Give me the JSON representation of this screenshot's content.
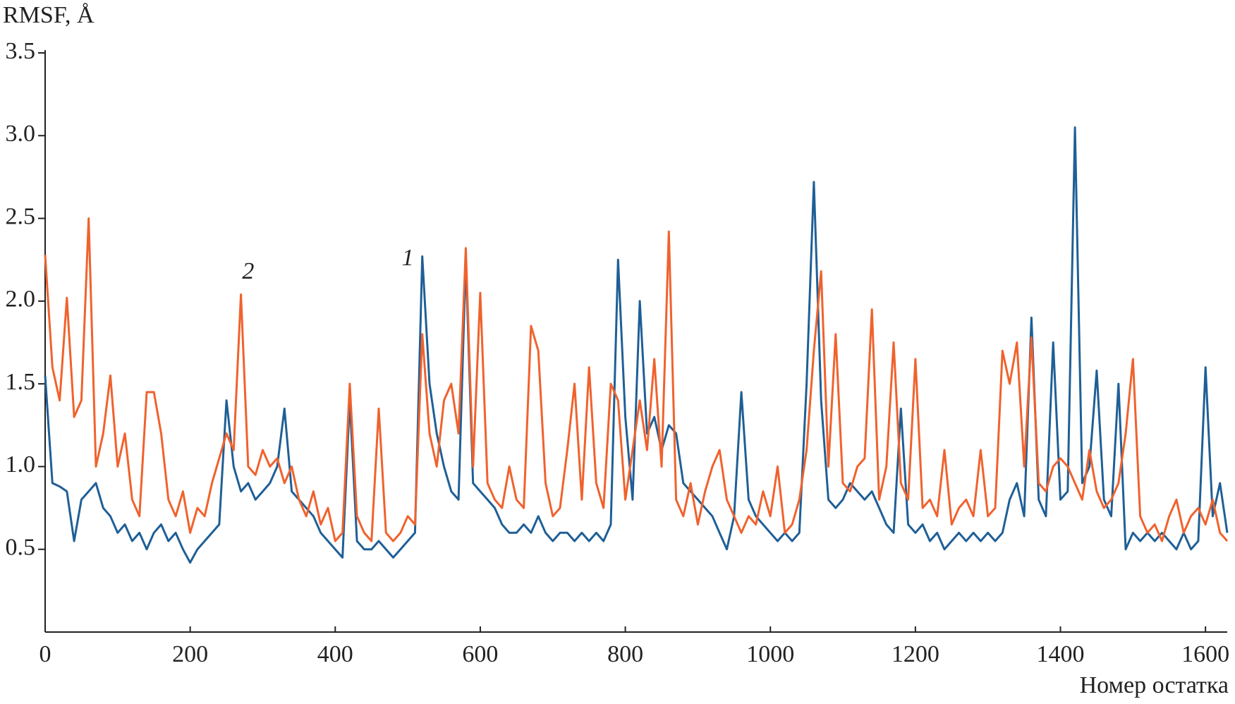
{
  "chart_data": {
    "type": "line",
    "y_label": "RMSF, Å",
    "x_label": "Номер остатка",
    "xlim": [
      0,
      1630
    ],
    "xticks": [
      0,
      200,
      400,
      600,
      800,
      1000,
      1200,
      1400,
      1600
    ],
    "ylim": [
      0,
      3.5
    ],
    "yticks": [
      {
        "value": 0.5,
        "label": "0.5"
      },
      {
        "value": 1,
        "label": "1.0"
      },
      {
        "value": 1.5,
        "label": "1.5"
      },
      {
        "value": 2,
        "label": "2.0"
      },
      {
        "value": 2.5,
        "label": "2.5"
      },
      {
        "value": 3,
        "label": "3.0"
      },
      {
        "value": 3.5,
        "label": "3.5"
      }
    ],
    "grid": false,
    "x": [
      0,
      10,
      20,
      30,
      40,
      50,
      60,
      70,
      80,
      90,
      100,
      110,
      120,
      130,
      140,
      150,
      160,
      170,
      180,
      190,
      200,
      210,
      220,
      230,
      240,
      250,
      260,
      270,
      280,
      290,
      300,
      310,
      320,
      330,
      340,
      350,
      360,
      370,
      380,
      390,
      400,
      410,
      420,
      430,
      440,
      450,
      460,
      470,
      480,
      490,
      500,
      510,
      520,
      530,
      540,
      550,
      560,
      570,
      580,
      590,
      600,
      610,
      620,
      630,
      640,
      650,
      660,
      670,
      680,
      690,
      700,
      710,
      720,
      730,
      740,
      750,
      760,
      770,
      780,
      790,
      800,
      810,
      820,
      830,
      840,
      850,
      860,
      870,
      880,
      890,
      900,
      910,
      920,
      930,
      940,
      950,
      960,
      970,
      980,
      990,
      1000,
      1010,
      1020,
      1030,
      1040,
      1050,
      1060,
      1070,
      1080,
      1090,
      1100,
      1110,
      1120,
      1130,
      1140,
      1150,
      1160,
      1170,
      1180,
      1190,
      1200,
      1210,
      1220,
      1230,
      1240,
      1250,
      1260,
      1270,
      1280,
      1290,
      1300,
      1310,
      1320,
      1330,
      1340,
      1350,
      1360,
      1370,
      1380,
      1390,
      1400,
      1410,
      1420,
      1430,
      1440,
      1450,
      1460,
      1470,
      1480,
      1490,
      1500,
      1510,
      1520,
      1530,
      1540,
      1550,
      1560,
      1570,
      1580,
      1590,
      1600,
      1610,
      1620,
      1630
    ],
    "series": [
      {
        "color": "#1f5f96",
        "values": [
          1.55,
          0.9,
          0.88,
          0.85,
          0.55,
          0.8,
          0.85,
          0.9,
          0.75,
          0.7,
          0.6,
          0.65,
          0.55,
          0.6,
          0.5,
          0.6,
          0.65,
          0.55,
          0.6,
          0.5,
          0.42,
          0.5,
          0.55,
          0.6,
          0.65,
          1.4,
          1.0,
          0.85,
          0.9,
          0.8,
          0.85,
          0.9,
          1.0,
          1.35,
          0.85,
          0.8,
          0.75,
          0.7,
          0.6,
          0.55,
          0.5,
          0.45,
          1.4,
          0.55,
          0.5,
          0.5,
          0.55,
          0.5,
          0.45,
          0.5,
          0.55,
          0.6,
          2.27,
          1.5,
          1.2,
          1.0,
          0.85,
          0.8,
          2.25,
          0.9,
          0.85,
          0.8,
          0.75,
          0.65,
          0.6,
          0.6,
          0.65,
          0.6,
          0.7,
          0.6,
          0.55,
          0.6,
          0.6,
          0.55,
          0.6,
          0.55,
          0.6,
          0.55,
          0.65,
          2.25,
          1.3,
          0.8,
          2.0,
          1.2,
          1.3,
          1.1,
          1.25,
          1.2,
          0.9,
          0.85,
          0.8,
          0.75,
          0.7,
          0.6,
          0.5,
          0.7,
          1.45,
          0.8,
          0.7,
          0.65,
          0.6,
          0.55,
          0.6,
          0.55,
          0.6,
          1.5,
          2.72,
          1.4,
          0.8,
          0.75,
          0.8,
          0.9,
          0.85,
          0.8,
          0.85,
          0.75,
          0.65,
          0.6,
          1.35,
          0.65,
          0.6,
          0.65,
          0.55,
          0.6,
          0.5,
          0.55,
          0.6,
          0.55,
          0.6,
          0.55,
          0.6,
          0.55,
          0.6,
          0.8,
          0.9,
          0.7,
          1.9,
          0.8,
          0.7,
          1.75,
          0.8,
          0.85,
          3.05,
          0.9,
          1.0,
          1.58,
          0.8,
          0.7,
          1.5,
          0.5,
          0.6,
          0.55,
          0.6,
          0.55,
          0.6,
          0.55,
          0.5,
          0.6,
          0.5,
          0.55,
          1.6,
          0.7,
          0.9,
          0.6
        ]
      },
      {
        "color": "#f0622d",
        "values": [
          2.28,
          1.6,
          1.4,
          2.02,
          1.3,
          1.4,
          2.5,
          1.0,
          1.2,
          1.55,
          1.0,
          1.2,
          0.8,
          0.7,
          1.45,
          1.45,
          1.2,
          0.8,
          0.7,
          0.85,
          0.6,
          0.75,
          0.7,
          0.9,
          1.05,
          1.2,
          1.1,
          2.04,
          1.0,
          0.95,
          1.1,
          1.0,
          1.05,
          0.9,
          1.0,
          0.8,
          0.7,
          0.85,
          0.65,
          0.75,
          0.55,
          0.6,
          1.5,
          0.7,
          0.6,
          0.55,
          1.35,
          0.6,
          0.55,
          0.6,
          0.7,
          0.65,
          1.8,
          1.2,
          1.0,
          1.4,
          1.5,
          1.2,
          2.32,
          1.0,
          2.05,
          0.9,
          0.8,
          0.75,
          1.0,
          0.8,
          0.75,
          1.85,
          1.7,
          0.9,
          0.7,
          0.75,
          1.1,
          1.5,
          0.8,
          1.6,
          0.9,
          0.75,
          1.5,
          1.4,
          0.8,
          1.1,
          1.4,
          1.1,
          1.65,
          1.0,
          2.42,
          0.8,
          0.7,
          0.9,
          0.65,
          0.85,
          1.0,
          1.1,
          0.8,
          0.7,
          0.6,
          0.7,
          0.65,
          0.85,
          0.7,
          1.0,
          0.6,
          0.65,
          0.8,
          1.1,
          1.7,
          2.18,
          1.0,
          1.8,
          0.9,
          0.85,
          1.0,
          1.05,
          1.95,
          0.8,
          1.0,
          1.75,
          0.9,
          0.8,
          1.65,
          0.75,
          0.8,
          0.7,
          1.1,
          0.65,
          0.75,
          0.8,
          0.7,
          1.1,
          0.7,
          0.75,
          1.7,
          1.5,
          1.75,
          1.0,
          1.78,
          0.9,
          0.85,
          1.0,
          1.05,
          1.0,
          0.9,
          0.8,
          1.1,
          0.85,
          0.75,
          0.8,
          0.9,
          1.2,
          1.65,
          0.7,
          0.6,
          0.65,
          0.55,
          0.7,
          0.8,
          0.6,
          0.7,
          0.75,
          0.65,
          0.8,
          0.6,
          0.55
        ]
      }
    ],
    "annotations": [
      {
        "text": "1",
        "x": 500,
        "y": 2.25
      },
      {
        "text": "2",
        "x": 280,
        "y": 2.17
      }
    ]
  }
}
